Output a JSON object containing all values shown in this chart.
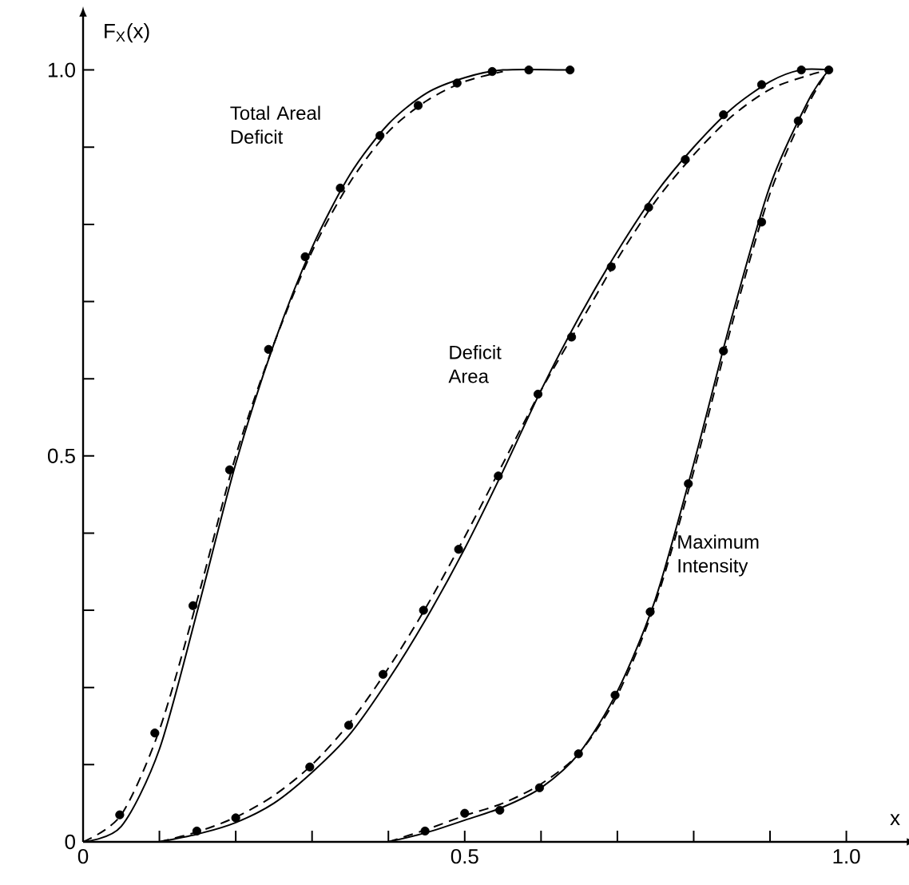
{
  "chart_data": {
    "type": "line",
    "xlabel": "x",
    "ylabel": "F$_{X}$(x)",
    "xlim": [
      0,
      1.08
    ],
    "ylim": [
      0,
      1.07
    ],
    "xticks": [
      0,
      {
        "value": 0.1,
        "label": null
      },
      {
        "value": 0.2,
        "label": null
      },
      {
        "value": 0.3,
        "label": null
      },
      {
        "value": 0.4,
        "label": null
      },
      0.5,
      {
        "value": 0.6,
        "label": null
      },
      {
        "value": 0.7,
        "label": null
      },
      {
        "value": 0.8,
        "label": null
      },
      {
        "value": 0.9,
        "label": null
      },
      {
        "value": 1.0,
        "label": "1.0"
      }
    ],
    "yticks": [
      0,
      {
        "value": 0.1,
        "label": null
      },
      {
        "value": 0.2,
        "label": null
      },
      {
        "value": 0.3,
        "label": null
      },
      {
        "value": 0.4,
        "label": null
      },
      0.5,
      {
        "value": 0.6,
        "label": null
      },
      {
        "value": 0.7,
        "label": null
      },
      {
        "value": 0.8,
        "label": null
      },
      {
        "value": 0.9,
        "label": null
      },
      {
        "value": 1.0,
        "label": "1.0"
      }
    ],
    "annotations": [
      "Total Areal Deficit",
      "Deficit Area",
      "Maximum Intensity"
    ],
    "series": [
      {
        "line_style": "solid",
        "color": "#000000",
        "x": [
          0,
          0.05,
          0.1,
          0.15,
          0.2,
          0.25,
          0.3,
          0.35,
          0.4,
          0.45,
          0.5,
          0.55,
          0.638
        ],
        "values": [
          0,
          0.02,
          0.12,
          0.3,
          0.49,
          0.645,
          0.77,
          0.865,
          0.93,
          0.97,
          0.99,
          1.0,
          1.0
        ]
      },
      {
        "line_style": "dashed",
        "color": "#000000",
        "x": [
          0,
          0.05,
          0.1,
          0.15,
          0.2,
          0.25,
          0.3,
          0.35,
          0.4,
          0.45,
          0.5,
          0.55
        ],
        "values": [
          0,
          0.035,
          0.145,
          0.315,
          0.5,
          0.645,
          0.765,
          0.855,
          0.92,
          0.96,
          0.985,
          0.998
        ]
      },
      {
        "type": "scatter",
        "marker": "circle",
        "color": "#000000",
        "x": [
          0.048,
          0.094,
          0.144,
          0.192,
          0.243,
          0.291,
          0.337,
          0.389,
          0.439,
          0.49,
          0.536,
          0.584,
          0.638
        ],
        "values": [
          0.035,
          0.141,
          0.306,
          0.482,
          0.638,
          0.758,
          0.847,
          0.915,
          0.954,
          0.983,
          0.998,
          1.0,
          1.0
        ]
      },
      {
        "line_style": "solid",
        "color": "#000000",
        "x": [
          0.1,
          0.15,
          0.2,
          0.25,
          0.3,
          0.35,
          0.4,
          0.45,
          0.5,
          0.55,
          0.6,
          0.65,
          0.7,
          0.75,
          0.8,
          0.85,
          0.9,
          0.94,
          0.977
        ],
        "values": [
          0,
          0.01,
          0.025,
          0.05,
          0.09,
          0.14,
          0.21,
          0.29,
          0.38,
          0.48,
          0.585,
          0.68,
          0.765,
          0.84,
          0.9,
          0.95,
          0.985,
          1.0,
          1.0
        ]
      },
      {
        "line_style": "dashed",
        "color": "#000000",
        "x": [
          0.1,
          0.15,
          0.2,
          0.25,
          0.3,
          0.35,
          0.4,
          0.45,
          0.5,
          0.55,
          0.6,
          0.65,
          0.7,
          0.75,
          0.8,
          0.85,
          0.9,
          0.95,
          0.977
        ],
        "values": [
          0,
          0.013,
          0.032,
          0.06,
          0.1,
          0.155,
          0.225,
          0.305,
          0.395,
          0.49,
          0.585,
          0.67,
          0.755,
          0.83,
          0.89,
          0.94,
          0.975,
          0.993,
          1.0
        ]
      },
      {
        "type": "scatter",
        "marker": "circle",
        "color": "#000000",
        "x": [
          0.149,
          0.2,
          0.297,
          0.348,
          0.393,
          0.446,
          0.492,
          0.544,
          0.596,
          0.64,
          0.692,
          0.741,
          0.789,
          0.839,
          0.889,
          0.941,
          0.977
        ],
        "values": [
          0.014,
          0.031,
          0.097,
          0.151,
          0.217,
          0.3,
          0.379,
          0.474,
          0.58,
          0.654,
          0.745,
          0.822,
          0.884,
          0.942,
          0.981,
          1.0,
          1.0
        ]
      },
      {
        "line_style": "solid",
        "color": "#000000",
        "x": [
          0.4,
          0.45,
          0.5,
          0.55,
          0.6,
          0.65,
          0.7,
          0.75,
          0.8,
          0.85,
          0.9,
          0.95,
          0.977
        ],
        "values": [
          0,
          0.012,
          0.028,
          0.045,
          0.07,
          0.115,
          0.195,
          0.315,
          0.49,
          0.68,
          0.85,
          0.96,
          1.0
        ]
      },
      {
        "line_style": "dashed",
        "color": "#000000",
        "x": [
          0.4,
          0.45,
          0.5,
          0.55,
          0.6,
          0.65,
          0.7,
          0.75,
          0.8,
          0.85,
          0.9,
          0.95,
          0.977
        ],
        "values": [
          0,
          0.016,
          0.034,
          0.05,
          0.075,
          0.115,
          0.19,
          0.31,
          0.48,
          0.67,
          0.84,
          0.955,
          1.0
        ]
      },
      {
        "type": "scatter",
        "marker": "circle",
        "color": "#000000",
        "x": [
          0.448,
          0.5,
          0.546,
          0.598,
          0.649,
          0.697,
          0.743,
          0.793,
          0.839,
          0.889,
          0.937
        ],
        "values": [
          0.014,
          0.037,
          0.041,
          0.07,
          0.114,
          0.19,
          0.298,
          0.464,
          0.636,
          0.803,
          0.934
        ]
      }
    ]
  }
}
